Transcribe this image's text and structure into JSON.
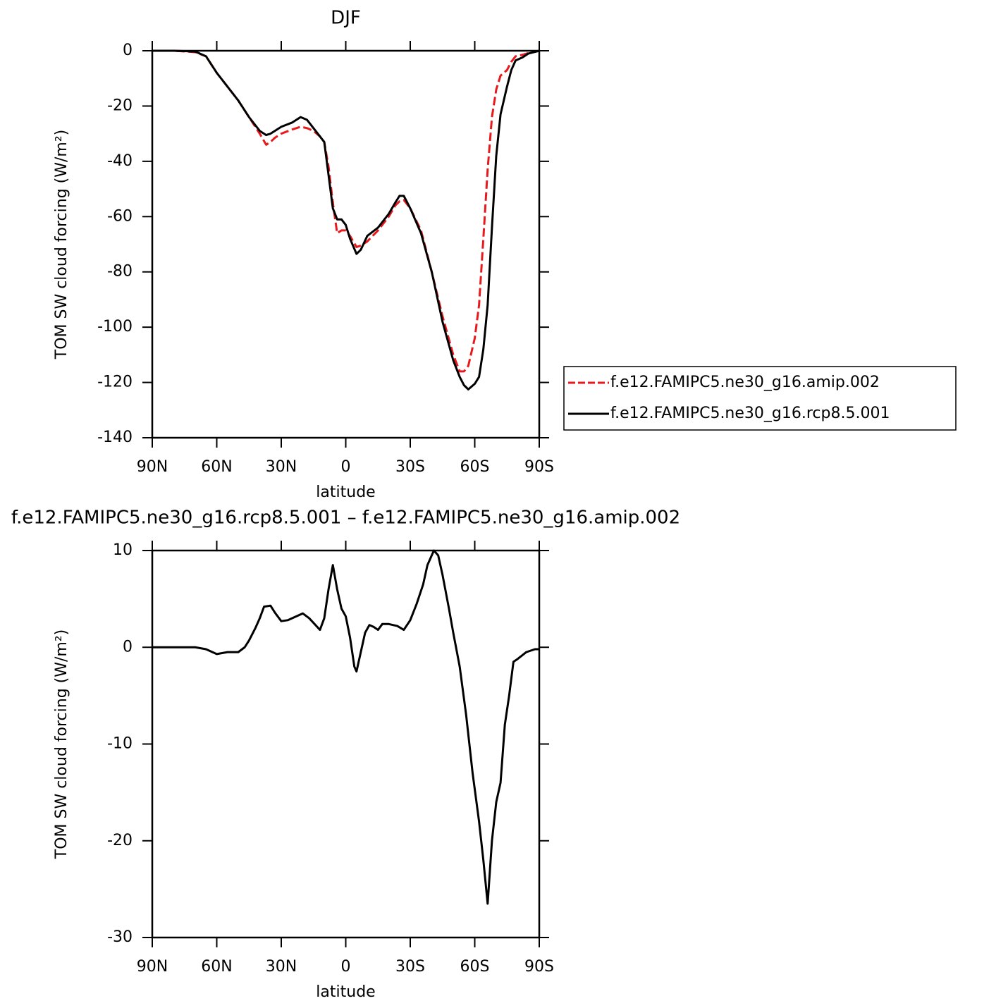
{
  "chart_data": [
    {
      "type": "line",
      "title": "DJF",
      "xlabel": "latitude",
      "ylabel": "TOM SW cloud forcing (W/m²)",
      "xlim": [
        90,
        -90
      ],
      "xticks": [
        {
          "value": 90,
          "label": "90N"
        },
        {
          "value": 60,
          "label": "60N"
        },
        {
          "value": 30,
          "label": "30N"
        },
        0,
        {
          "value": -30,
          "label": "30S"
        },
        {
          "value": -60,
          "label": "60S"
        },
        {
          "value": -90,
          "label": "90S"
        }
      ],
      "ylim": [
        -140,
        0
      ],
      "yticks": [
        -140,
        -120,
        -100,
        -80,
        -60,
        -40,
        -20,
        0
      ],
      "legend": "right",
      "x": [
        90,
        80,
        70,
        65,
        60,
        55,
        50,
        45,
        40,
        37,
        35,
        33,
        30,
        25,
        21,
        18,
        15,
        12,
        10,
        8,
        6,
        4,
        2,
        0,
        -2,
        -5,
        -7,
        -10,
        -15,
        -20,
        -23,
        -25,
        -27,
        -30,
        -35,
        -40,
        -45,
        -50,
        -53,
        -55,
        -57,
        -60,
        -62,
        -64,
        -66,
        -68,
        -70,
        -72,
        -75,
        -77,
        -79,
        -82,
        -85,
        -90
      ],
      "series": [
        {
          "name": "f.e12.FAMIPC5.ne30_g16.amip.002",
          "color": "#e8191c",
          "dashed": true,
          "values": [
            0,
            0,
            -0.5,
            -2,
            -8,
            -13,
            -18,
            -24,
            -30,
            -34,
            -33,
            -31.5,
            -30,
            -28.5,
            -27.5,
            -28,
            -29,
            -31,
            -33,
            -42,
            -55,
            -66,
            -65,
            -65,
            -67,
            -71,
            -70.5,
            -69,
            -65,
            -60,
            -56,
            -54.5,
            -54,
            -57,
            -65,
            -80,
            -96,
            -110,
            -116,
            -116,
            -114,
            -104,
            -92,
            -68,
            -43,
            -24,
            -14,
            -9,
            -7,
            -4,
            -2,
            -1.5,
            -0.8,
            0
          ]
        },
        {
          "name": "f.e12.FAMIPC5.ne30_g16.rcp8.5.001",
          "color": "#000000",
          "dashed": false,
          "values": [
            0,
            0,
            -0.3,
            -2,
            -8,
            -13,
            -18,
            -24,
            -29,
            -30.5,
            -30,
            -29,
            -27.5,
            -26,
            -24,
            -25,
            -28,
            -31,
            -33,
            -45,
            -57,
            -61,
            -61,
            -63,
            -68,
            -73.5,
            -72,
            -67,
            -64,
            -59,
            -55,
            -52.5,
            -52.5,
            -57,
            -66,
            -80,
            -98,
            -112,
            -118,
            -121,
            -122.5,
            -120.5,
            -118,
            -108,
            -92,
            -64,
            -38,
            -23,
            -13,
            -7,
            -3.5,
            -2.5,
            -1,
            0
          ]
        }
      ]
    },
    {
      "type": "line",
      "title": "f.e12.FAMIPC5.ne30_g16.rcp8.5.001 – f.e12.FAMIPC5.ne30_g16.amip.002",
      "xlabel": "latitude",
      "ylabel": "TOM SW cloud forcing (W/m²)",
      "xlim": [
        90,
        -90
      ],
      "xticks": [
        {
          "value": 90,
          "label": "90N"
        },
        {
          "value": 60,
          "label": "60N"
        },
        {
          "value": 30,
          "label": "30N"
        },
        0,
        {
          "value": -30,
          "label": "30S"
        },
        {
          "value": -60,
          "label": "60S"
        },
        {
          "value": -90,
          "label": "90S"
        }
      ],
      "ylim": [
        -30,
        10
      ],
      "yticks": [
        -30,
        -20,
        -10,
        0,
        10
      ],
      "x": [
        90,
        70,
        65,
        60,
        55,
        50,
        47,
        45,
        42,
        40,
        38,
        35,
        33,
        30,
        27,
        23,
        20,
        17,
        12,
        10,
        8,
        6,
        4,
        2,
        0,
        -2,
        -4,
        -5,
        -7,
        -9,
        -11,
        -13,
        -15,
        -17,
        -20,
        -24,
        -27,
        -30,
        -33,
        -36,
        -38,
        -41,
        -43,
        -45,
        -48,
        -50,
        -53,
        -56,
        -59,
        -62,
        -64,
        -66,
        -68,
        -70,
        -72,
        -74,
        -76,
        -78,
        -80,
        -84,
        -88,
        -90
      ],
      "color": "#000000",
      "values": [
        0,
        0,
        -0.2,
        -0.7,
        -0.5,
        -0.5,
        0,
        0.7,
        2,
        3,
        4.2,
        4.3,
        3.6,
        2.7,
        2.8,
        3.2,
        3.5,
        3,
        1.8,
        3,
        6,
        8.5,
        6,
        4,
        3.2,
        1,
        -2,
        -2.5,
        -0.5,
        1.5,
        2.3,
        2.1,
        1.8,
        2.4,
        2.4,
        2.2,
        1.8,
        2.8,
        4.5,
        6.5,
        8.5,
        10,
        9.5,
        7.5,
        4,
        1.5,
        -2,
        -7,
        -13,
        -18,
        -22,
        -26.5,
        -20,
        -16,
        -14,
        -8,
        -5,
        -1.5,
        -1.2,
        -0.5,
        -0.2,
        -0.2
      ]
    }
  ]
}
